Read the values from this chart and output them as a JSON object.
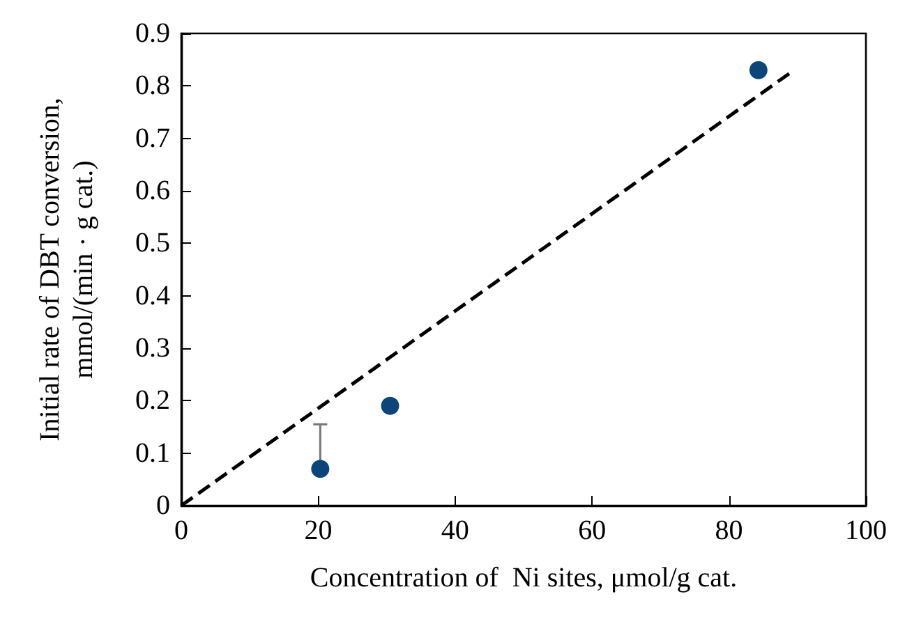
{
  "chart_data": {
    "type": "scatter",
    "xlabel": "Concentration of  Ni sites, μmol/g cat.",
    "ylabel": "Initial rate of DBT conversion,\nmmol/(min · g cat.)",
    "xlim": [
      0,
      100
    ],
    "xticks": [
      0,
      20,
      40,
      60,
      80,
      100
    ],
    "ylim": [
      0,
      0.9
    ],
    "yticks": [
      0,
      0.1,
      0.2,
      0.3,
      0.4,
      0.5,
      0.6,
      0.7,
      0.8,
      0.9
    ],
    "grid": false,
    "series": [
      {
        "color": "#0b4579",
        "marker": "circle",
        "x": [
          20.3,
          30.5,
          84.3
        ],
        "values": [
          0.07,
          0.19,
          0.83
        ],
        "errors": [
          [
            0.07,
            0.155
          ],
          null,
          null
        ]
      },
      {
        "type": "line",
        "color": "#000000",
        "marker": "none",
        "line_style": "dashed",
        "x": [
          0,
          89.5
        ],
        "values": [
          0,
          0.83
        ]
      }
    ]
  }
}
